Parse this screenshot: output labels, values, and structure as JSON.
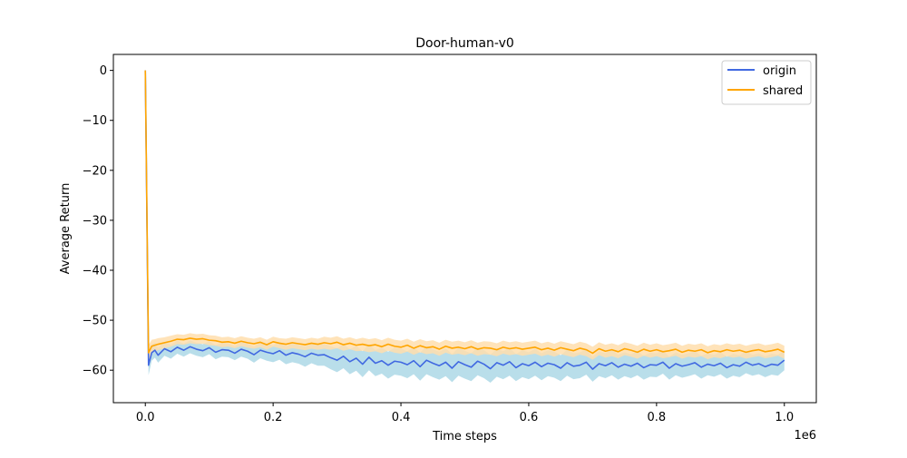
{
  "chart_data": {
    "type": "line",
    "title": "Door-human-v0",
    "xlabel": "Time steps",
    "ylabel": "Average Return",
    "x_offset_text": "1e6",
    "xlim": [
      -0.05,
      1.05
    ],
    "ylim": [
      -66.5,
      3.2
    ],
    "xticks": [
      0.0,
      0.2,
      0.4,
      0.6,
      0.8,
      1.0
    ],
    "xtick_labels": [
      "0.0",
      "0.2",
      "0.4",
      "0.6",
      "0.8",
      "1.0"
    ],
    "yticks": [
      0,
      -10,
      -20,
      -30,
      -40,
      -50,
      -60
    ],
    "ytick_labels": [
      "0",
      "−10",
      "−20",
      "−30",
      "−40",
      "−50",
      "−60"
    ],
    "grid": false,
    "legend_position": "top-right",
    "series": [
      {
        "name": "origin",
        "color": "#4169e1",
        "band_color": "#add8e6",
        "x": [
          0,
          0.005,
          0.01,
          0.015,
          0.02,
          0.03,
          0.04,
          0.05,
          0.06,
          0.07,
          0.08,
          0.09,
          0.1,
          0.11,
          0.12,
          0.13,
          0.14,
          0.15,
          0.16,
          0.17,
          0.18,
          0.19,
          0.2,
          0.21,
          0.22,
          0.23,
          0.24,
          0.25,
          0.26,
          0.27,
          0.28,
          0.29,
          0.3,
          0.31,
          0.32,
          0.33,
          0.34,
          0.35,
          0.36,
          0.37,
          0.38,
          0.39,
          0.4,
          0.41,
          0.42,
          0.43,
          0.44,
          0.45,
          0.46,
          0.47,
          0.48,
          0.49,
          0.5,
          0.51,
          0.52,
          0.53,
          0.54,
          0.55,
          0.56,
          0.57,
          0.58,
          0.59,
          0.6,
          0.61,
          0.62,
          0.63,
          0.64,
          0.65,
          0.66,
          0.67,
          0.68,
          0.69,
          0.7,
          0.71,
          0.72,
          0.73,
          0.74,
          0.75,
          0.76,
          0.77,
          0.78,
          0.79,
          0.8,
          0.81,
          0.82,
          0.83,
          0.84,
          0.85,
          0.86,
          0.87,
          0.88,
          0.89,
          0.9,
          0.91,
          0.92,
          0.93,
          0.94,
          0.95,
          0.96,
          0.97,
          0.98,
          0.99,
          1.0
        ],
        "values": [
          0,
          -59.0,
          -56.5,
          -56.0,
          -57.0,
          -55.7,
          -56.3,
          -55.4,
          -56.0,
          -55.3,
          -55.8,
          -56.1,
          -55.5,
          -56.4,
          -55.9,
          -56.0,
          -56.6,
          -55.8,
          -56.2,
          -56.9,
          -56.0,
          -56.4,
          -56.7,
          -56.1,
          -57.0,
          -56.5,
          -56.8,
          -57.3,
          -56.6,
          -57.0,
          -56.9,
          -57.5,
          -58.0,
          -57.2,
          -58.3,
          -57.6,
          -58.8,
          -57.4,
          -58.6,
          -58.1,
          -59.0,
          -58.2,
          -58.4,
          -58.9,
          -58.1,
          -59.3,
          -58.0,
          -58.6,
          -59.1,
          -58.4,
          -59.6,
          -58.3,
          -58.9,
          -59.4,
          -58.2,
          -58.8,
          -59.7,
          -58.5,
          -59.0,
          -58.3,
          -59.5,
          -58.7,
          -59.1,
          -58.4,
          -59.3,
          -58.6,
          -58.9,
          -59.6,
          -58.5,
          -59.2,
          -59.0,
          -58.4,
          -59.8,
          -58.7,
          -59.1,
          -58.5,
          -59.4,
          -58.8,
          -59.2,
          -58.6,
          -59.5,
          -58.9,
          -59.0,
          -58.4,
          -59.6,
          -58.7,
          -59.2,
          -58.9,
          -58.5,
          -59.4,
          -58.8,
          -59.1,
          -58.6,
          -59.5,
          -58.9,
          -59.2,
          -58.4,
          -59.0,
          -58.7,
          -59.3,
          -58.8,
          -59.0,
          -58.0
        ],
        "band": [
          0,
          2.0,
          1.6,
          1.5,
          1.5,
          1.4,
          1.4,
          1.3,
          1.3,
          1.3,
          1.3,
          1.3,
          1.3,
          1.4,
          1.4,
          1.4,
          1.4,
          1.5,
          1.5,
          1.6,
          1.6,
          1.7,
          1.7,
          1.8,
          1.8,
          1.9,
          1.9,
          2.0,
          2.0,
          2.1,
          2.2,
          2.3,
          2.4,
          2.4,
          2.5,
          2.5,
          2.6,
          2.6,
          2.6,
          2.6,
          2.7,
          2.7,
          2.7,
          2.7,
          2.7,
          2.8,
          2.8,
          2.8,
          2.8,
          2.8,
          2.8,
          2.8,
          2.8,
          2.8,
          2.8,
          2.8,
          2.8,
          2.8,
          2.8,
          2.8,
          2.7,
          2.7,
          2.7,
          2.7,
          2.7,
          2.6,
          2.6,
          2.6,
          2.6,
          2.6,
          2.6,
          2.5,
          2.5,
          2.5,
          2.5,
          2.5,
          2.5,
          2.4,
          2.4,
          2.4,
          2.4,
          2.4,
          2.4,
          2.3,
          2.3,
          2.3,
          2.3,
          2.3,
          2.3,
          2.3,
          2.2,
          2.2,
          2.2,
          2.2,
          2.2,
          2.2,
          2.2,
          2.1,
          2.1,
          2.1,
          2.1,
          2.1,
          2.0
        ]
      },
      {
        "name": "shared",
        "color": "#ffa500",
        "band_color": "#ffdead",
        "x": [
          0,
          0.005,
          0.01,
          0.015,
          0.02,
          0.03,
          0.04,
          0.05,
          0.06,
          0.07,
          0.08,
          0.09,
          0.1,
          0.11,
          0.12,
          0.13,
          0.14,
          0.15,
          0.16,
          0.17,
          0.18,
          0.19,
          0.2,
          0.21,
          0.22,
          0.23,
          0.24,
          0.25,
          0.26,
          0.27,
          0.28,
          0.29,
          0.3,
          0.31,
          0.32,
          0.33,
          0.34,
          0.35,
          0.36,
          0.37,
          0.38,
          0.39,
          0.4,
          0.41,
          0.42,
          0.43,
          0.44,
          0.45,
          0.46,
          0.47,
          0.48,
          0.49,
          0.5,
          0.51,
          0.52,
          0.53,
          0.54,
          0.55,
          0.56,
          0.57,
          0.58,
          0.59,
          0.6,
          0.61,
          0.62,
          0.63,
          0.64,
          0.65,
          0.66,
          0.67,
          0.68,
          0.69,
          0.7,
          0.71,
          0.72,
          0.73,
          0.74,
          0.75,
          0.76,
          0.77,
          0.78,
          0.79,
          0.8,
          0.81,
          0.82,
          0.83,
          0.84,
          0.85,
          0.86,
          0.87,
          0.88,
          0.89,
          0.9,
          0.91,
          0.92,
          0.93,
          0.94,
          0.95,
          0.96,
          0.97,
          0.98,
          0.99,
          1.0
        ],
        "values": [
          0,
          -56.5,
          -55.2,
          -55.0,
          -54.8,
          -54.5,
          -54.2,
          -53.8,
          -53.9,
          -53.6,
          -53.8,
          -53.7,
          -54.0,
          -54.1,
          -54.4,
          -54.3,
          -54.6,
          -54.2,
          -54.5,
          -54.7,
          -54.4,
          -54.9,
          -54.3,
          -54.6,
          -54.8,
          -54.5,
          -54.7,
          -54.9,
          -54.6,
          -54.8,
          -54.5,
          -54.7,
          -54.4,
          -54.9,
          -54.6,
          -55.0,
          -54.8,
          -55.1,
          -54.9,
          -55.3,
          -54.8,
          -55.2,
          -55.4,
          -55.0,
          -55.6,
          -55.1,
          -55.5,
          -55.3,
          -55.8,
          -55.2,
          -55.6,
          -55.4,
          -55.7,
          -55.3,
          -55.8,
          -55.5,
          -55.6,
          -55.9,
          -55.4,
          -55.7,
          -55.5,
          -55.8,
          -55.6,
          -55.4,
          -55.9,
          -55.6,
          -56.0,
          -55.5,
          -55.8,
          -56.1,
          -55.6,
          -55.9,
          -56.6,
          -55.7,
          -56.2,
          -55.9,
          -56.3,
          -55.7,
          -56.0,
          -56.4,
          -55.8,
          -56.2,
          -55.9,
          -56.3,
          -56.1,
          -55.8,
          -56.4,
          -56.0,
          -56.2,
          -55.9,
          -56.5,
          -56.1,
          -56.3,
          -55.9,
          -56.2,
          -56.0,
          -56.4,
          -56.1,
          -55.9,
          -56.3,
          -56.1,
          -55.8,
          -56.4
        ],
        "band": [
          0,
          1.5,
          1.3,
          1.2,
          1.2,
          1.1,
          1.1,
          1.0,
          1.0,
          1.0,
          1.0,
          1.0,
          1.0,
          1.0,
          1.0,
          1.0,
          1.0,
          1.0,
          1.0,
          1.0,
          1.0,
          1.0,
          1.0,
          1.0,
          1.1,
          1.1,
          1.1,
          1.1,
          1.1,
          1.1,
          1.2,
          1.2,
          1.2,
          1.2,
          1.2,
          1.2,
          1.3,
          1.3,
          1.3,
          1.3,
          1.3,
          1.3,
          1.3,
          1.3,
          1.3,
          1.3,
          1.3,
          1.3,
          1.3,
          1.3,
          1.3,
          1.3,
          1.3,
          1.3,
          1.3,
          1.3,
          1.3,
          1.3,
          1.3,
          1.3,
          1.3,
          1.3,
          1.3,
          1.3,
          1.3,
          1.3,
          1.3,
          1.3,
          1.3,
          1.3,
          1.3,
          1.3,
          1.3,
          1.3,
          1.3,
          1.3,
          1.3,
          1.3,
          1.3,
          1.3,
          1.3,
          1.3,
          1.3,
          1.3,
          1.3,
          1.3,
          1.3,
          1.3,
          1.3,
          1.3,
          1.3,
          1.3,
          1.3,
          1.3,
          1.3,
          1.3,
          1.3,
          1.3,
          1.3,
          1.3,
          1.3,
          1.3,
          1.3
        ]
      }
    ]
  }
}
